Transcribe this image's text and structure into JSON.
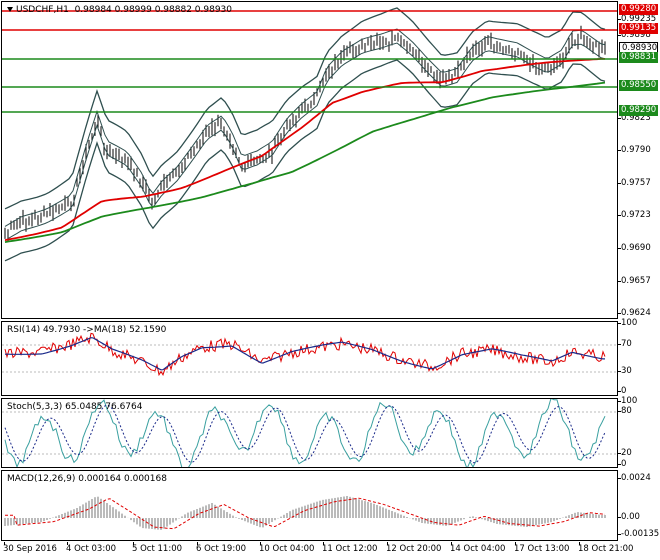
{
  "main": {
    "symbol_label": "USDCHF,H1",
    "ohlc": "0.98984 0.98999 0.98882 0.98930",
    "y_ticks": [
      "0.9898",
      "0.9823",
      "0.9790",
      "0.9757",
      "0.9723",
      "0.9690",
      "0.9657",
      "0.9624"
    ],
    "levels": [
      {
        "value": "0.99280",
        "color": "#e00000",
        "text_color": "#ffffff"
      },
      {
        "value": "0.99135",
        "color": "#e00000",
        "text_color": "#ffffff"
      },
      {
        "value": "0.98930",
        "color": "#ffffff",
        "text_color": "#000000"
      },
      {
        "value": "0.98831",
        "color": "#1c8a1c",
        "text_color": "#ffffff"
      },
      {
        "value": "0.98550",
        "color": "#1c8a1c",
        "text_color": "#ffffff"
      },
      {
        "value": "0.98290",
        "color": "#1c8a1c",
        "text_color": "#ffffff"
      }
    ],
    "hidden_tick": "0.99235"
  },
  "rsi": {
    "label": "RSI(14) 49.7930 ->MA(18) 52.1590",
    "y_ticks": [
      "100",
      "70",
      "30",
      "0"
    ]
  },
  "stoch": {
    "label": "Stoch(5,3,3) 65.0485 76.6764",
    "y_ticks": [
      "100",
      "80",
      "20",
      "0"
    ]
  },
  "macd": {
    "label": "MACD(12,26,9) 0.000164 0.000168",
    "y_ticks": [
      "0.0024",
      "0.00",
      "-0.00135"
    ]
  },
  "x_axis": {
    "labels": [
      "30 Sep 2016",
      "4 Oct 03:00",
      "5 Oct 11:00",
      "6 Oct 19:00",
      "10 Oct 04:00",
      "11 Oct 12:00",
      "12 Oct 20:00",
      "14 Oct 04:00",
      "17 Oct 13:00",
      "18 Oct 21:00"
    ]
  },
  "colors": {
    "bull_line_red": "#e00000",
    "ma_green": "#1c8a1c",
    "bands": "#2f4f4f",
    "candles": "#000000",
    "indicator_red": "#e00000",
    "indicator_blue": "#1a2a8a",
    "stoch_teal": "#3aa0a0"
  }
}
